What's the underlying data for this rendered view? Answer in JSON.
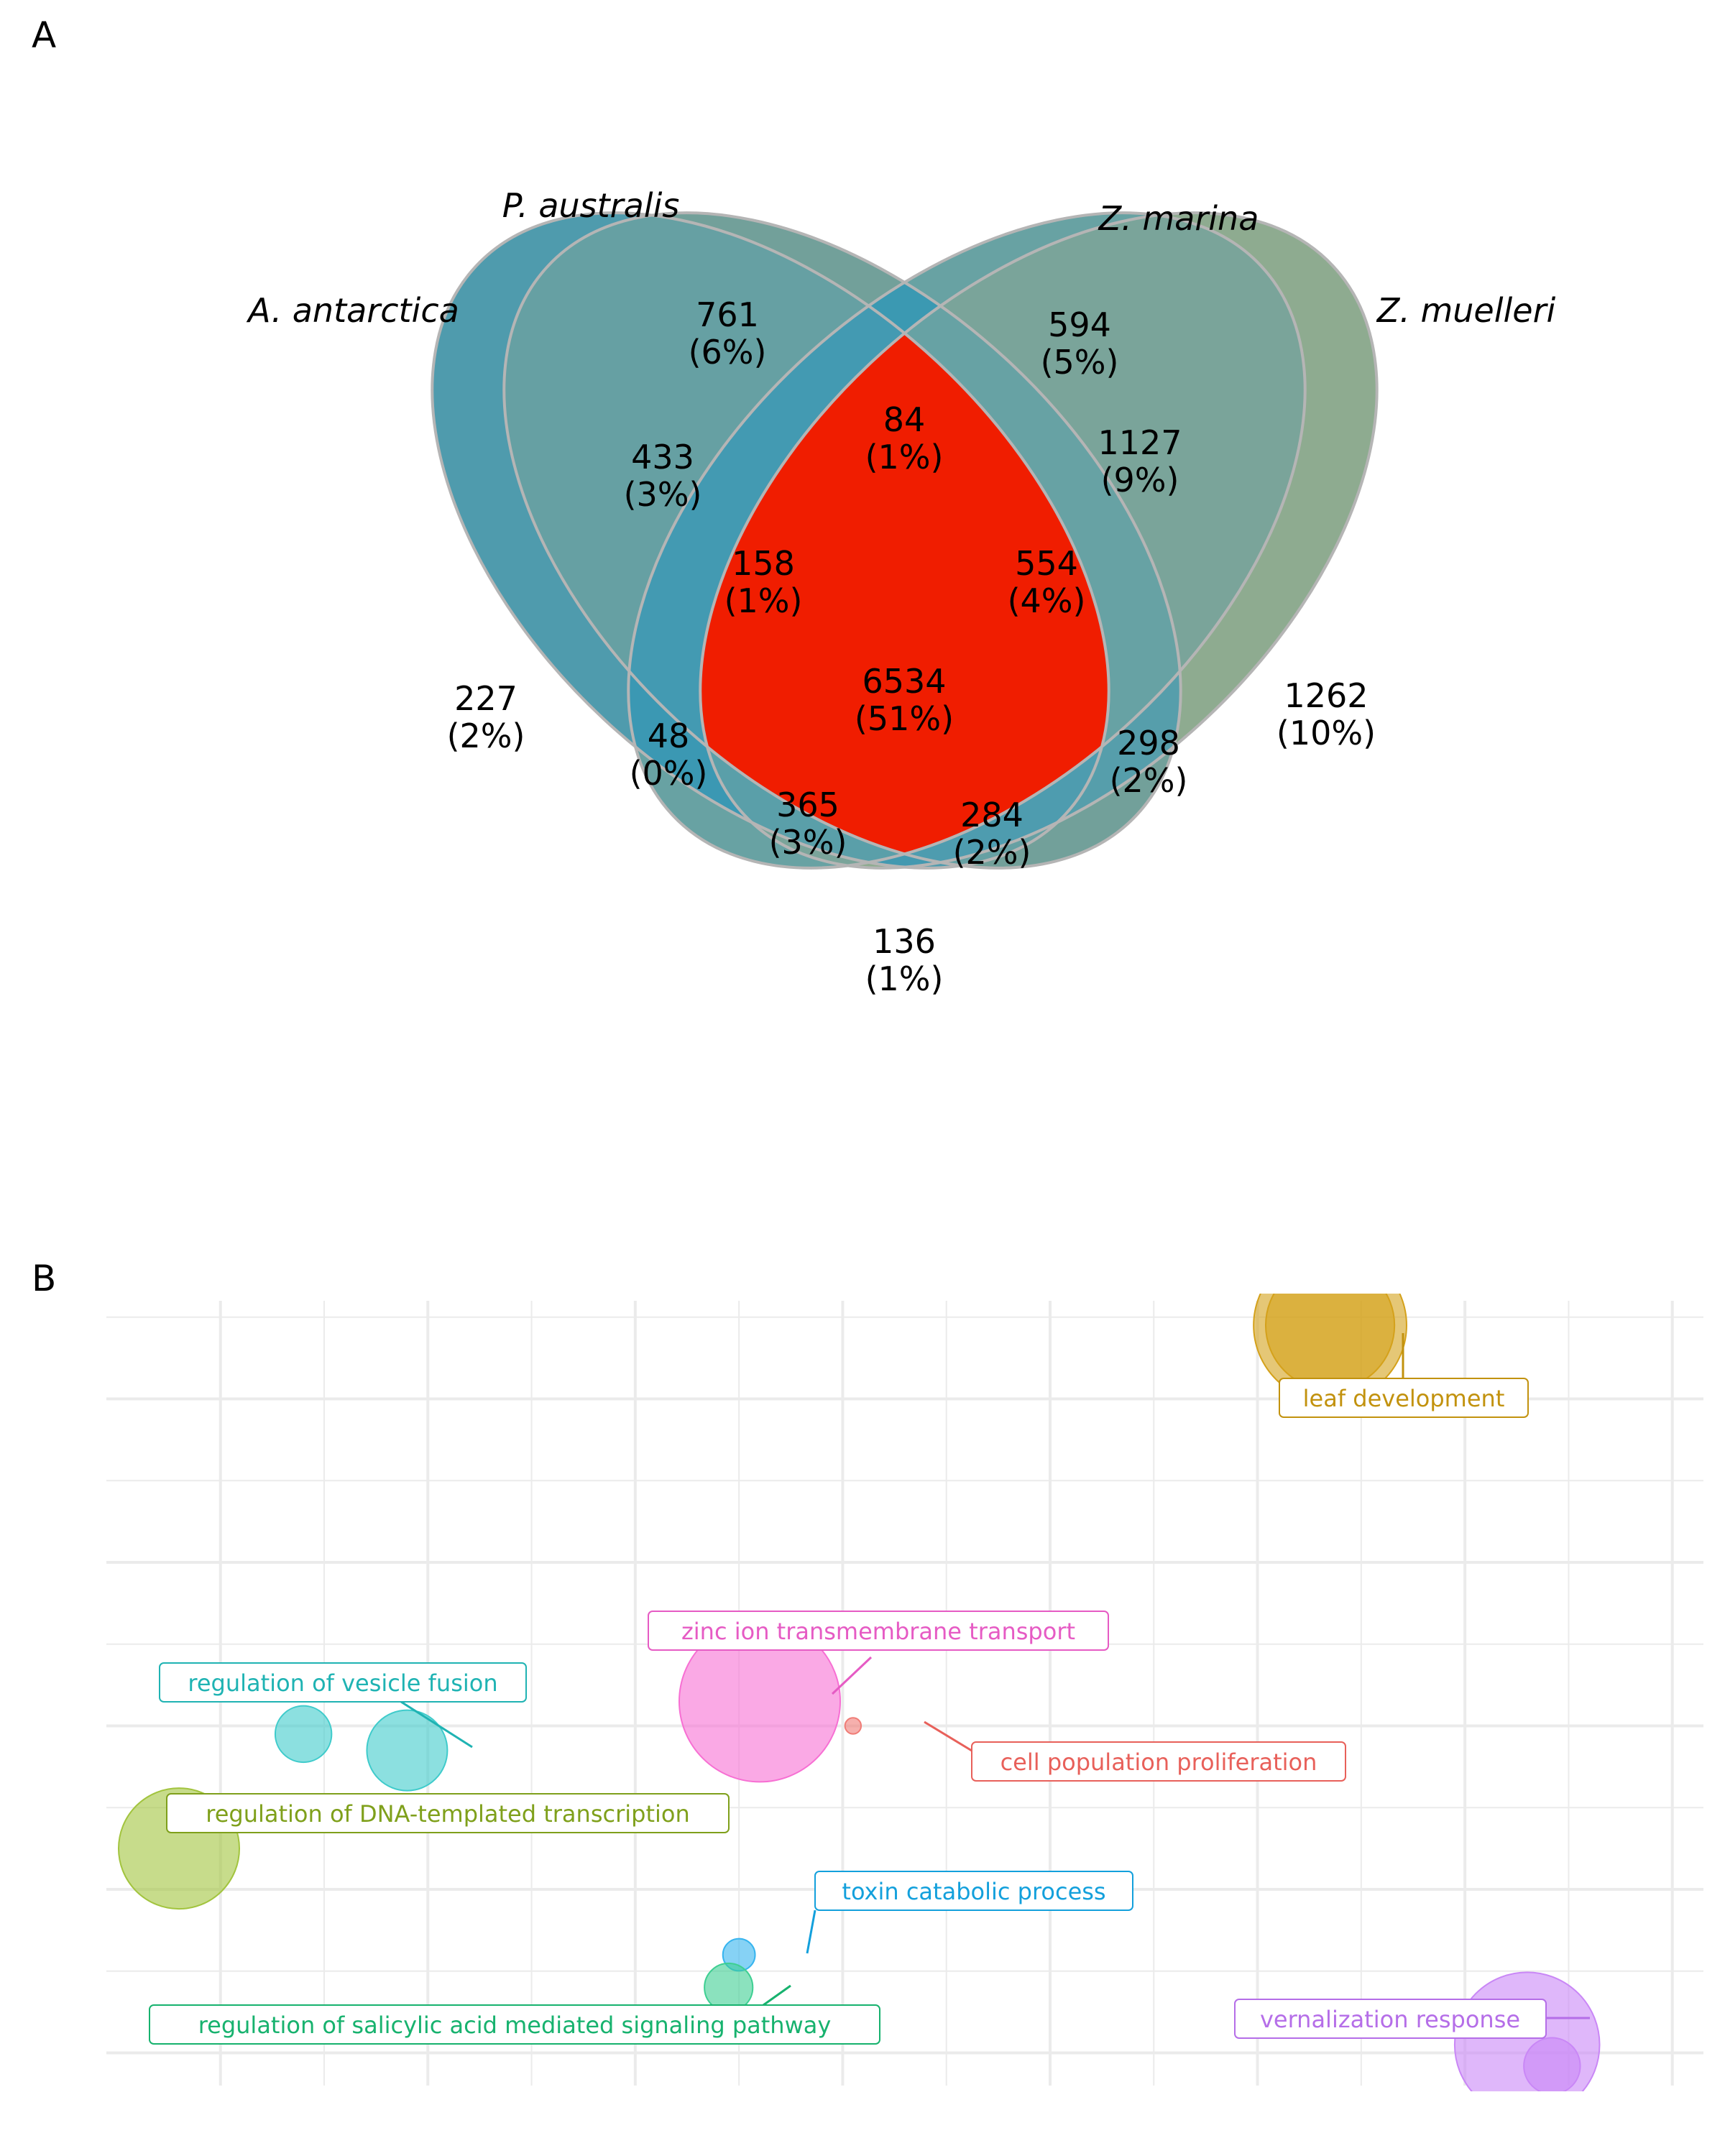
{
  "panels": {
    "a": "A",
    "b": "B"
  },
  "venn": {
    "sets": [
      {
        "name": "A. antarctica",
        "color": "#4f9baa"
      },
      {
        "name": "P. australis",
        "color": "#72a09a"
      },
      {
        "name": "Z. marina",
        "color": "#68a2a3"
      },
      {
        "name": "Z. muelleri",
        "color": "#8eab90"
      }
    ],
    "regions": [
      {
        "id": "A",
        "count": "227",
        "pct": "(2%)",
        "color": "#4f9bad"
      },
      {
        "id": "P",
        "count": "761",
        "pct": "(6%)",
        "color": "#72a09a"
      },
      {
        "id": "M",
        "count": "594",
        "pct": "(5%)",
        "color": "#68a2a3"
      },
      {
        "id": "U",
        "count": "1262",
        "pct": "(10%)",
        "color": "#8eab90"
      },
      {
        "id": "AP",
        "count": "433",
        "pct": "(3%)",
        "color": "#66a0a3"
      },
      {
        "id": "PM",
        "count": "84",
        "pct": "(1%)",
        "color": "#3b99b2"
      },
      {
        "id": "MU",
        "count": "1127",
        "pct": "(9%)",
        "color": "#7aa49a"
      },
      {
        "id": "APM",
        "count": "158",
        "pct": "(1%)",
        "color": "#439ab2"
      },
      {
        "id": "PMU",
        "count": "554",
        "pct": "(4%)",
        "color": "#67a2a4"
      },
      {
        "id": "AM",
        "count": "48",
        "pct": "(0%)",
        "color": "#3b98b3"
      },
      {
        "id": "PU",
        "count": "298",
        "pct": "(2%)",
        "color": "#569eab"
      },
      {
        "id": "AMU",
        "count": "365",
        "pct": "(3%)",
        "color": "#5a9fa9"
      },
      {
        "id": "APU",
        "count": "284",
        "pct": "(2%)",
        "color": "#4e9caf"
      },
      {
        "id": "AU",
        "count": "136",
        "pct": "(1%)",
        "color": "#4399b0"
      },
      {
        "id": "APMU",
        "count": "6534",
        "pct": "(51%)",
        "color": "#f01d00"
      }
    ]
  },
  "chart_data": {
    "type": "scatter",
    "title": "",
    "xlabel": "",
    "ylabel": "",
    "grid": true,
    "legend": "none",
    "xlim": [
      -3.55,
      4.15
    ],
    "ylim": [
      -2.2,
      2.6
    ],
    "points": [
      {
        "label": "leaf development",
        "color": "#d4a11b",
        "x": 2.35,
        "y": 2.45,
        "size": 0.95
      },
      {
        "label": "leaf development",
        "color": "#d4a11b",
        "x": 2.35,
        "y": 2.45,
        "size": 0.8
      },
      {
        "label": "zinc ion transmembrane transport",
        "color": "#f76fd3",
        "x": -0.4,
        "y": 0.15,
        "size": 1.0
      },
      {
        "label": "cell population proliferation",
        "color": "#f07c76",
        "x": 0.05,
        "y": 0.0,
        "size": 0.1
      },
      {
        "label": "regulation of vesicle fusion",
        "color": "#3fcbcb",
        "x": -2.6,
        "y": -0.05,
        "size": 0.35
      },
      {
        "label": "regulation of vesicle fusion",
        "color": "#3fcbcb",
        "x": -2.1,
        "y": -0.15,
        "size": 0.5
      },
      {
        "label": "regulation of DNA-templated transcription",
        "color": "#a2c43e",
        "x": -3.2,
        "y": -0.75,
        "size": 0.75
      },
      {
        "label": "toxin catabolic process",
        "color": "#36b4ef",
        "x": -0.5,
        "y": -1.4,
        "size": 0.2
      },
      {
        "label": "regulation of salicylic acid mediated signaling pathway",
        "color": "#3ecf92",
        "x": -0.55,
        "y": -1.6,
        "size": 0.3
      },
      {
        "label": "vernalization response",
        "color": "#c987f6",
        "x": 3.3,
        "y": -1.95,
        "size": 0.9
      },
      {
        "label": "vernalization response",
        "color": "#c987f6",
        "x": 3.42,
        "y": -2.08,
        "size": 0.35
      }
    ],
    "labels": [
      {
        "text": "leaf development",
        "color": "#c2920e"
      },
      {
        "text": "zinc ion transmembrane transport",
        "color": "#e65bc4"
      },
      {
        "text": "cell population proliferation",
        "color": "#e8605a"
      },
      {
        "text": "regulation of vesicle fusion",
        "color": "#1fb3b3"
      },
      {
        "text": "regulation of DNA-templated transcription",
        "color": "#7fa01b"
      },
      {
        "text": "toxin catabolic process",
        "color": "#13a0dc"
      },
      {
        "text": "regulation of salicylic acid mediated signaling pathway",
        "color": "#17b26e"
      },
      {
        "text": "vernalization response",
        "color": "#b56ee8"
      }
    ]
  }
}
